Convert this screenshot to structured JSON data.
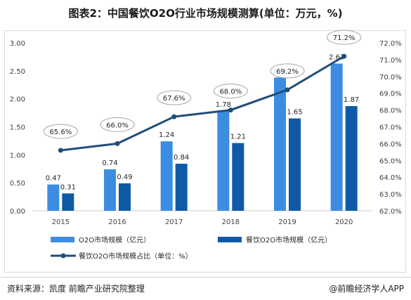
{
  "title": "图表2：中国餐饮O2O行业市场规模测算(单位：万元，%)",
  "source": "资料来源：凯度 前瞻产业研究院整理",
  "credit": "@前瞻经济学人APP",
  "chart_data": {
    "type": "bar",
    "title": "图表2：中国餐饮O2O行业市场规模测算(单位：万元，%)",
    "categories": [
      "2015",
      "2016",
      "2017",
      "2018",
      "2019",
      "2020"
    ],
    "series": [
      {
        "name": "O2O市场规模（亿元）",
        "type": "bar",
        "axis": "left",
        "color": "#3c8de2",
        "values": [
          0.47,
          0.74,
          1.24,
          1.78,
          2.38,
          2.63
        ]
      },
      {
        "name": "餐饮O2O市场规模（亿元）",
        "type": "bar",
        "axis": "left",
        "color": "#0e5aa6",
        "values": [
          0.31,
          0.49,
          0.84,
          1.21,
          1.65,
          1.87
        ]
      },
      {
        "name": "餐饮O2O市场规模占比（单位：%）",
        "type": "line",
        "axis": "right",
        "color": "#1f4e79",
        "values": [
          65.6,
          66.0,
          67.6,
          68.0,
          69.2,
          71.2
        ]
      }
    ],
    "y_left": {
      "ticks": [
        "0.00",
        "0.50",
        "1.00",
        "1.50",
        "2.00",
        "2.50",
        "3.00"
      ],
      "ylim": [
        0,
        3
      ]
    },
    "y_right": {
      "ticks": [
        "62.0%",
        "63.0%",
        "64.0%",
        "65.0%",
        "66.0%",
        "67.0%",
        "68.0%",
        "69.0%",
        "70.0%",
        "71.0%",
        "72.0%"
      ],
      "ylim": [
        62,
        72
      ]
    },
    "bar_labels": [
      [
        "0.47",
        "0.74",
        "1.24",
        "1.78",
        "2.38",
        "2.63"
      ],
      [
        "0.31",
        "0.49",
        "0.84",
        "1.21",
        "1.65",
        "1.87"
      ]
    ],
    "line_labels": [
      "65.6%",
      "66.0%",
      "67.6%",
      "68.0%",
      "69.2%",
      "71.2%"
    ],
    "legend_position": "bottom",
    "grid": false
  }
}
